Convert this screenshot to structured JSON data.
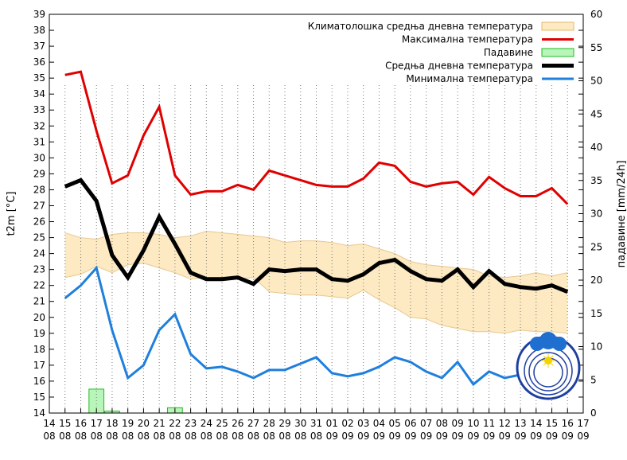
{
  "chart_data": {
    "type": "line",
    "title": "",
    "ylabel": "t2m [°C]",
    "y2label": "падавине [mm/24h]",
    "xlabel": "",
    "ylim": [
      14,
      39
    ],
    "y2lim": [
      0,
      60
    ],
    "yticks": [
      14,
      15,
      16,
      17,
      18,
      19,
      20,
      21,
      22,
      23,
      24,
      25,
      26,
      27,
      28,
      29,
      30,
      31,
      32,
      33,
      34,
      35,
      36,
      37,
      38,
      39
    ],
    "y2ticks": [
      0,
      5,
      10,
      15,
      20,
      25,
      30,
      35,
      40,
      45,
      50,
      55,
      60
    ],
    "x_ticks": [
      {
        "day": "14",
        "month": "08"
      },
      {
        "day": "15",
        "month": "08"
      },
      {
        "day": "16",
        "month": "08"
      },
      {
        "day": "17",
        "month": "08"
      },
      {
        "day": "18",
        "month": "08"
      },
      {
        "day": "19",
        "month": "08"
      },
      {
        "day": "20",
        "month": "08"
      },
      {
        "day": "21",
        "month": "08"
      },
      {
        "day": "22",
        "month": "08"
      },
      {
        "day": "23",
        "month": "08"
      },
      {
        "day": "24",
        "month": "08"
      },
      {
        "day": "25",
        "month": "08"
      },
      {
        "day": "26",
        "month": "08"
      },
      {
        "day": "27",
        "month": "08"
      },
      {
        "day": "28",
        "month": "08"
      },
      {
        "day": "29",
        "month": "08"
      },
      {
        "day": "30",
        "month": "08"
      },
      {
        "day": "31",
        "month": "08"
      },
      {
        "day": "01",
        "month": "09"
      },
      {
        "day": "02",
        "month": "09"
      },
      {
        "day": "03",
        "month": "09"
      },
      {
        "day": "04",
        "month": "09"
      },
      {
        "day": "05",
        "month": "09"
      },
      {
        "day": "06",
        "month": "09"
      },
      {
        "day": "07",
        "month": "09"
      },
      {
        "day": "08",
        "month": "09"
      },
      {
        "day": "09",
        "month": "09"
      },
      {
        "day": "10",
        "month": "09"
      },
      {
        "day": "11",
        "month": "09"
      },
      {
        "day": "12",
        "month": "09"
      },
      {
        "day": "13",
        "month": "09"
      },
      {
        "day": "14",
        "month": "09"
      },
      {
        "day": "15",
        "month": "09"
      },
      {
        "day": "16",
        "month": "09"
      },
      {
        "day": "17",
        "month": "09"
      }
    ],
    "x_index_range": [
      0,
      34
    ],
    "grid": "vertical dotted",
    "legend_position": "top-right",
    "legend": [
      {
        "label": "Климатолошка средња дневна температура",
        "kind": "band",
        "fill": "#fde9c2",
        "stroke": "#e7b86a"
      },
      {
        "label": "Максимална температура",
        "kind": "line",
        "color": "#e00000"
      },
      {
        "label": "Падавине",
        "kind": "bar",
        "fill": "#b8f5b8",
        "stroke": "#22bb22"
      },
      {
        "label": "Средња дневна температура",
        "kind": "line",
        "color": "#000000"
      },
      {
        "label": "Минимална температура",
        "kind": "line",
        "color": "#1f7fdc"
      }
    ],
    "series": [
      {
        "name": "Максимална температура",
        "color": "#e00000",
        "axis": "left",
        "x": [
          1,
          2,
          3,
          4,
          5,
          6,
          7,
          8,
          9,
          10,
          11,
          12,
          13,
          14,
          15,
          16,
          17,
          18,
          19,
          20,
          21,
          22,
          23,
          24,
          25,
          26,
          27,
          28,
          29,
          30,
          31,
          32,
          33
        ],
        "values": [
          35.2,
          35.4,
          31.7,
          28.4,
          28.9,
          31.4,
          33.2,
          28.9,
          27.7,
          27.9,
          27.9,
          28.3,
          28.0,
          29.2,
          28.9,
          28.6,
          28.3,
          28.2,
          28.2,
          28.7,
          29.7,
          29.5,
          28.5,
          28.2,
          28.4,
          28.5,
          27.7,
          28.8,
          28.1,
          27.6,
          27.6,
          28.1,
          27.1
        ]
      },
      {
        "name": "Средња дневна температура",
        "color": "#000000",
        "axis": "left",
        "x": [
          1,
          2,
          3,
          4,
          5,
          6,
          7,
          8,
          9,
          10,
          11,
          12,
          13,
          14,
          15,
          16,
          17,
          18,
          19,
          20,
          21,
          22,
          23,
          24,
          25,
          26,
          27,
          28,
          29,
          30,
          31,
          32,
          33
        ],
        "values": [
          28.2,
          28.6,
          27.3,
          23.9,
          22.5,
          24.2,
          26.3,
          24.6,
          22.8,
          22.4,
          22.4,
          22.5,
          22.1,
          23.0,
          22.9,
          23.0,
          23.0,
          22.4,
          22.3,
          22.7,
          23.4,
          23.6,
          22.9,
          22.4,
          22.3,
          23.0,
          21.9,
          22.9,
          22.1,
          21.9,
          21.8,
          22.0,
          21.6
        ]
      },
      {
        "name": "Минимална температура",
        "color": "#1f7fdc",
        "axis": "left",
        "x": [
          1,
          2,
          3,
          4,
          5,
          6,
          7,
          8,
          9,
          10,
          11,
          12,
          13,
          14,
          15,
          16,
          17,
          18,
          19,
          20,
          21,
          22,
          23,
          24,
          25,
          26,
          27,
          28,
          29,
          30,
          31,
          32,
          33
        ],
        "values": [
          21.2,
          22.0,
          23.1,
          19.2,
          16.2,
          17.0,
          19.2,
          20.2,
          17.7,
          16.8,
          16.9,
          16.6,
          16.2,
          16.7,
          16.7,
          17.1,
          17.5,
          16.5,
          16.3,
          16.5,
          16.9,
          17.5,
          17.2,
          16.6,
          16.2,
          17.2,
          15.8,
          16.6,
          16.2,
          16.4,
          16.5,
          16.2,
          16.0
        ]
      },
      {
        "name": "Климатолошка средња дневна температура",
        "kind": "band",
        "axis": "left",
        "x": [
          1,
          2,
          3,
          4,
          5,
          6,
          7,
          8,
          9,
          10,
          11,
          12,
          13,
          14,
          15,
          16,
          17,
          18,
          19,
          20,
          21,
          22,
          23,
          24,
          25,
          26,
          27,
          28,
          29,
          30,
          31,
          32,
          33
        ],
        "upper": [
          25.3,
          25.0,
          24.9,
          25.2,
          25.3,
          25.3,
          25.2,
          25.0,
          25.1,
          25.4,
          25.3,
          25.2,
          25.1,
          25.0,
          24.7,
          24.8,
          24.8,
          24.7,
          24.5,
          24.6,
          24.3,
          24.0,
          23.5,
          23.3,
          23.2,
          23.1,
          23.0,
          22.6,
          22.5,
          22.6,
          22.8,
          22.6,
          22.8
        ],
        "lower": [
          22.5,
          22.7,
          23.2,
          22.8,
          23.3,
          23.4,
          23.1,
          22.8,
          22.4,
          22.5,
          22.5,
          22.4,
          22.5,
          21.6,
          21.5,
          21.4,
          21.4,
          21.3,
          21.2,
          21.7,
          21.1,
          20.6,
          20.0,
          19.9,
          19.5,
          19.3,
          19.1,
          19.1,
          19.0,
          19.2,
          19.1,
          19.1,
          19.0
        ]
      },
      {
        "name": "Падавине",
        "kind": "bar",
        "axis": "right",
        "x": [
          3,
          4,
          8
        ],
        "values": [
          3.6,
          0.3,
          0.8
        ]
      }
    ]
  }
}
